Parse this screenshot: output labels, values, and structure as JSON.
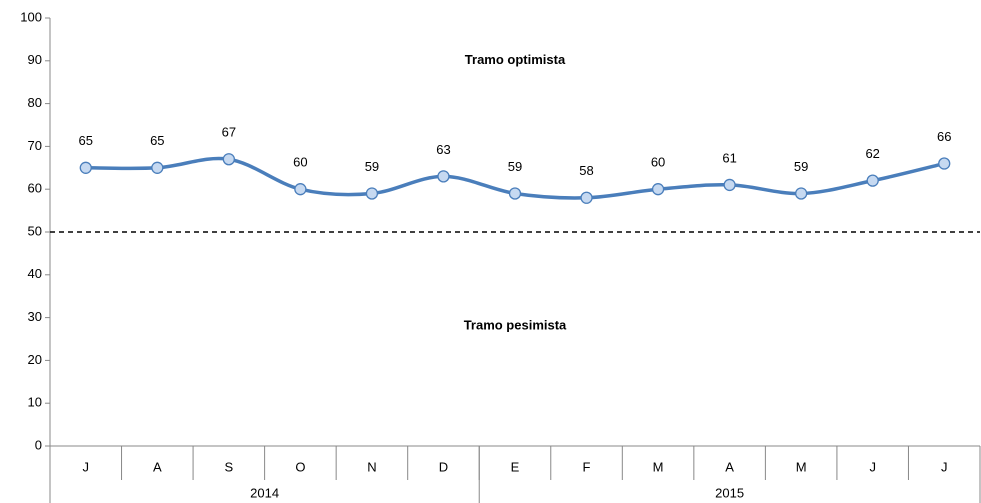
{
  "chart_data": {
    "type": "line",
    "categories": [
      "J",
      "A",
      "S",
      "O",
      "N",
      "D",
      "E",
      "F",
      "M",
      "A",
      "M",
      "J",
      "J"
    ],
    "x_groups": [
      {
        "name": "2014",
        "count": 6
      },
      {
        "name": "2015",
        "count": 7
      }
    ],
    "series": [
      {
        "color": "#4a7ebb",
        "marker_fill": "#c6d9f1",
        "values": [
          65,
          65,
          67,
          60,
          59,
          63,
          59,
          58,
          60,
          61,
          59,
          62,
          66
        ]
      }
    ],
    "ylim": [
      0,
      100
    ],
    "yticks": [
      0,
      10,
      20,
      30,
      40,
      50,
      60,
      70,
      80,
      90,
      100
    ],
    "reference_line": 50,
    "annotations": [
      {
        "text": "Tramo optimista",
        "value": 90
      },
      {
        "text": "Tramo pesimista",
        "value": 28
      }
    ]
  }
}
